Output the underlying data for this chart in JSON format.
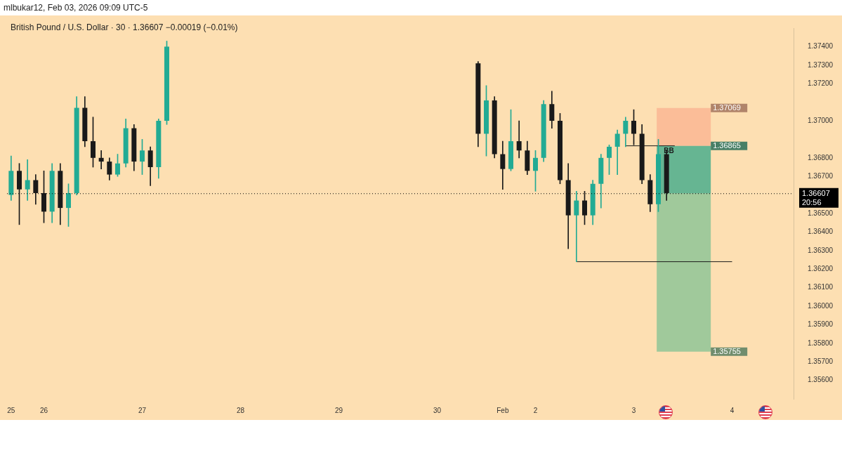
{
  "chart_data": {
    "type": "candlestick",
    "title": "British Pound / U.S. Dollar · 30 · 1.36607 −0.00019 (−0.01%)",
    "subtitle": "mlbukar12, Feb 03, 2026 09:09 UTC-5",
    "categories": [
      "25",
      null,
      null,
      null,
      "26",
      null,
      null,
      null,
      null,
      null,
      null,
      null,
      null,
      null,
      null,
      null,
      "27",
      null,
      null,
      null,
      null,
      null,
      null,
      null,
      null,
      null,
      null,
      null,
      "28",
      null,
      null,
      null,
      null,
      null,
      null,
      null,
      null,
      null,
      null,
      null,
      "29",
      null,
      null,
      null,
      null,
      null,
      null,
      null,
      null,
      null,
      null,
      null,
      "30",
      null,
      null,
      null,
      null,
      null,
      null,
      null,
      "Feb",
      null,
      null,
      null,
      "2",
      null,
      null,
      null,
      null,
      null,
      null,
      null,
      null,
      null,
      null,
      null,
      "3",
      null,
      null,
      null,
      null,
      null,
      null,
      null,
      null,
      null,
      null,
      null,
      "4",
      null,
      null,
      null,
      null,
      null,
      null,
      null
    ],
    "ohlc": [
      [
        1.366,
        1.3681,
        1.3657,
        1.3673
      ],
      [
        1.3673,
        1.3677,
        1.3644,
        1.3663
      ],
      [
        1.3663,
        1.3679,
        1.3657,
        1.3668
      ],
      [
        1.3668,
        1.3671,
        1.3655,
        1.3661
      ],
      [
        1.3661,
        1.3673,
        1.3645,
        1.3651
      ],
      [
        1.3651,
        1.3677,
        1.3645,
        1.3673
      ],
      [
        1.3673,
        1.3677,
        1.3644,
        1.3653
      ],
      [
        1.3653,
        1.3666,
        1.3643,
        1.3661
      ],
      [
        1.3661,
        1.3713,
        1.366,
        1.3707
      ],
      [
        1.3707,
        1.3713,
        1.3686,
        1.3689
      ],
      [
        1.3689,
        1.3702,
        1.3675,
        1.368
      ],
      [
        1.368,
        1.3684,
        1.3674,
        1.3678
      ],
      [
        1.3678,
        1.368,
        1.3668,
        1.3671
      ],
      [
        1.3671,
        1.3682,
        1.367,
        1.3677
      ],
      [
        1.3677,
        1.3701,
        1.3675,
        1.3696
      ],
      [
        1.3696,
        1.3698,
        1.3673,
        1.3678
      ],
      [
        1.3678,
        1.369,
        1.3671,
        1.3684
      ],
      [
        1.3684,
        1.3686,
        1.3665,
        1.3675
      ],
      [
        1.3675,
        1.3701,
        1.3669,
        1.37
      ],
      [
        1.37,
        1.3743,
        1.3698,
        1.374
      ],
      null,
      null,
      null,
      null,
      null,
      null,
      null,
      null,
      null,
      null,
      null,
      null,
      null,
      null,
      null,
      null,
      null,
      null,
      null,
      null,
      null,
      null,
      null,
      null,
      null,
      null,
      null,
      null,
      null,
      null,
      null,
      null,
      null,
      null,
      null,
      null,
      null,
      [
        1.3731,
        1.3732,
        1.3686,
        1.3693
      ],
      [
        1.3693,
        1.3719,
        1.3681,
        1.3711
      ],
      [
        1.3711,
        1.3713,
        1.368,
        1.3682
      ],
      [
        1.3682,
        1.3689,
        1.3663,
        1.3674
      ],
      [
        1.3674,
        1.3706,
        1.3673,
        1.3689
      ],
      [
        1.3689,
        1.37,
        1.368,
        1.3684
      ],
      [
        1.3684,
        1.3689,
        1.3671,
        1.3673
      ],
      [
        1.3673,
        1.3684,
        1.3662,
        1.368
      ],
      [
        1.368,
        1.3711,
        1.3678,
        1.3709
      ],
      [
        1.3709,
        1.3716,
        1.3696,
        1.37
      ],
      [
        1.37,
        1.3704,
        1.3666,
        1.3668
      ],
      [
        1.3668,
        1.3677,
        1.3631,
        1.3649
      ],
      [
        1.3649,
        1.3662,
        1.3624,
        1.3657
      ],
      [
        1.3657,
        1.3662,
        1.3644,
        1.3649
      ],
      [
        1.3649,
        1.3668,
        1.3644,
        1.3666
      ],
      [
        1.3666,
        1.3682,
        1.3653,
        1.368
      ],
      [
        1.368,
        1.3687,
        1.3671,
        1.3686
      ],
      [
        1.3686,
        1.3695,
        1.3671,
        1.3693
      ],
      [
        1.3693,
        1.3702,
        1.3686,
        1.37
      ],
      [
        1.37,
        1.3706,
        1.3687,
        1.3693
      ],
      [
        1.3693,
        1.3698,
        1.3666,
        1.3668
      ],
      [
        1.3668,
        1.3671,
        1.3651,
        1.3655
      ],
      [
        1.3655,
        1.369,
        1.3651,
        1.3682
      ],
      [
        1.3682,
        1.3684,
        1.3657,
        1.3661
      ],
      null,
      null,
      null,
      null,
      null,
      null,
      null,
      null,
      null,
      null,
      null,
      null,
      null,
      null,
      null
    ],
    "colors": [
      "#22ab94",
      "#1a1a1a",
      "#22ab94",
      "#1a1a1a",
      "#1a1a1a",
      "#22ab94",
      "#1a1a1a",
      "#22ab94",
      "#22ab94",
      "#1a1a1a",
      "#1a1a1a",
      "#1a1a1a",
      "#1a1a1a",
      "#22ab94",
      "#22ab94",
      "#1a1a1a",
      "#22ab94",
      "#1a1a1a",
      "#22ab94",
      "#22ab94",
      null,
      null,
      null,
      null,
      null,
      null,
      null,
      null,
      null,
      null,
      null,
      null,
      null,
      null,
      null,
      null,
      null,
      null,
      null,
      null,
      null,
      null,
      null,
      null,
      null,
      null,
      null,
      null,
      null,
      null,
      null,
      null,
      null,
      null,
      null,
      null,
      null,
      "#1a1a1a",
      "#22ab94",
      "#1a1a1a",
      "#1a1a1a",
      "#22ab94",
      "#1a1a1a",
      "#1a1a1a",
      "#22ab94",
      "#22ab94",
      "#1a1a1a",
      "#1a1a1a",
      "#1a1a1a",
      "#22ab94",
      "#1a1a1a",
      "#22ab94",
      "#22ab94",
      "#22ab94",
      "#22ab94",
      "#22ab94",
      "#1a1a1a",
      "#1a1a1a",
      "#1a1a1a",
      "#22ab94",
      "#1a1a1a",
      null,
      null,
      null,
      null,
      null,
      null,
      null,
      null,
      null,
      null,
      null,
      null,
      null,
      null,
      null
    ],
    "series": [
      {
        "type": "line",
        "color": "#1a1a1a",
        "values": [
          null,
          null,
          null,
          null,
          null,
          null,
          null,
          null,
          null,
          null,
          null,
          null,
          null,
          null,
          null,
          null,
          null,
          null,
          null,
          null,
          null,
          null,
          null,
          null,
          null,
          null,
          null,
          null,
          null,
          null,
          null,
          null,
          null,
          null,
          null,
          null,
          null,
          null,
          null,
          null,
          null,
          null,
          null,
          null,
          null,
          null,
          null,
          null,
          null,
          null,
          null,
          null,
          null,
          null,
          null,
          null,
          null,
          null,
          null,
          null,
          null,
          null,
          null,
          null,
          null,
          null,
          null,
          null,
          null,
          1.3624,
          null,
          null,
          null,
          null,
          null,
          null,
          null,
          null,
          null,
          null,
          null,
          null,
          null,
          null,
          null,
          null,
          null,
          null,
          1.3624,
          null,
          null,
          null,
          null,
          null,
          null,
          null
        ]
      },
      {
        "type": "line",
        "color": "#1a1a1a",
        "values": [
          null,
          null,
          null,
          null,
          null,
          null,
          null,
          null,
          null,
          null,
          null,
          null,
          null,
          null,
          null,
          null,
          null,
          null,
          null,
          null,
          null,
          null,
          null,
          null,
          null,
          null,
          null,
          null,
          null,
          null,
          null,
          null,
          null,
          null,
          null,
          null,
          null,
          null,
          null,
          null,
          null,
          null,
          null,
          null,
          null,
          null,
          null,
          null,
          null,
          null,
          null,
          null,
          null,
          null,
          null,
          null,
          null,
          null,
          null,
          null,
          null,
          null,
          null,
          null,
          null,
          null,
          null,
          null,
          null,
          null,
          null,
          null,
          null,
          null,
          null,
          1.36865,
          null,
          null,
          null,
          null,
          null,
          1.36865,
          null,
          null,
          null,
          null,
          null,
          null,
          null,
          null,
          null,
          null,
          null,
          null,
          null,
          null
        ]
      }
    ],
    "ylim": [
      1.355,
      1.375
    ],
    "yticks": [
      {
        "value": 1.356,
        "label": "1.35600"
      },
      {
        "value": 1.357,
        "label": "1.35700"
      },
      {
        "value": 1.358,
        "label": "1.35800"
      },
      {
        "value": 1.359,
        "label": "1.35900"
      },
      {
        "value": 1.36,
        "label": "1.36000"
      },
      {
        "value": 1.361,
        "label": "1.36100"
      },
      {
        "value": 1.362,
        "label": "1.36200"
      },
      {
        "value": 1.363,
        "label": "1.36300"
      },
      {
        "value": 1.364,
        "label": "1.36400"
      },
      {
        "value": 1.365,
        "label": "1.36500"
      },
      {
        "value": 1.367,
        "label": "1.36700"
      },
      {
        "value": 1.368,
        "label": "1.36800"
      },
      {
        "value": 1.37,
        "label": "1.37000"
      },
      {
        "value": 1.372,
        "label": "1.37200"
      },
      {
        "value": 1.373,
        "label": "1.37300"
      },
      {
        "value": 1.374,
        "label": "1.37400"
      }
    ],
    "bands": [
      {
        "axis": "y",
        "from": 1.36865,
        "to": 1.37069,
        "color": "#fbbd98",
        "label": "1.37069"
      },
      {
        "axis": "y",
        "from": 1.36607,
        "to": 1.36865,
        "color": "#66b592",
        "label": "1.36865"
      },
      {
        "axis": "y",
        "from": 1.36607,
        "to": 1.35755,
        "color": "#a0c99b",
        "label": "1.35755"
      }
    ],
    "ref_lines": [
      {
        "axis": "y",
        "value": 1.36607,
        "label": "1.36607",
        "color": "#000000",
        "line_style": "dotted"
      }
    ],
    "annotations": [
      "20:56",
      {
        "text": "BB",
        "y": 1.36865
      }
    ]
  }
}
